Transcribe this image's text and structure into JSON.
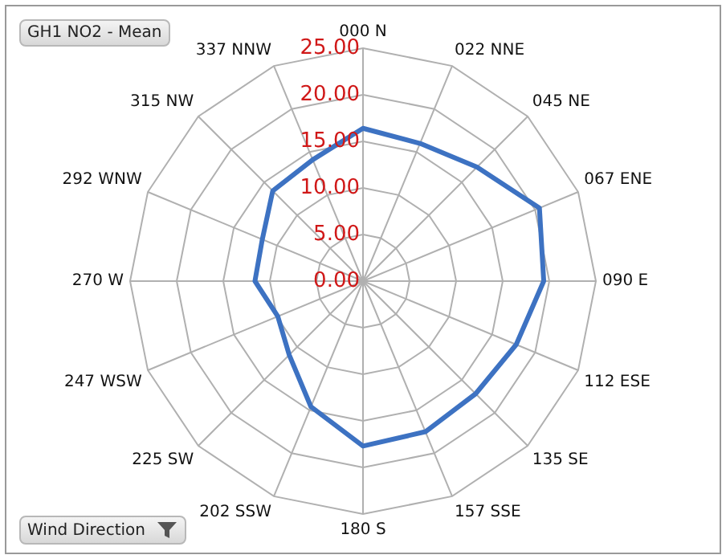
{
  "chart_data": {
    "type": "radar",
    "title": "GH1 NO2 - Mean",
    "annotations": [
      "Wind Direction"
    ],
    "categories": [
      "000 N",
      "022 NNE",
      "045 NE",
      "067 ENE",
      "090 E",
      "112 ESE",
      "135 SE",
      "157 SSE",
      "180 S",
      "202 SSW",
      "225 SW",
      "247 WSW",
      "270 W",
      "292 WNW",
      "315 NW",
      "337 NNW"
    ],
    "series": [
      {
        "color": "#3d72c2",
        "values": [
          16.4,
          16.0,
          17.3,
          20.5,
          19.4,
          17.8,
          17.1,
          17.5,
          17.7,
          14.6,
          11.2,
          9.9,
          11.6,
          11.7,
          13.7,
          14.1
        ]
      }
    ],
    "ylim": [
      0,
      25
    ],
    "yticks": [
      {
        "value": 0,
        "label": "0.00"
      },
      {
        "value": 5,
        "label": "5.00"
      },
      {
        "value": 10,
        "label": "10.00"
      },
      {
        "value": 15,
        "label": "15.00"
      },
      {
        "value": 20,
        "label": "20.00"
      },
      {
        "value": 25,
        "label": "25.00"
      }
    ],
    "grid": true,
    "legend": false,
    "marker": "none",
    "line_style": "solid"
  }
}
